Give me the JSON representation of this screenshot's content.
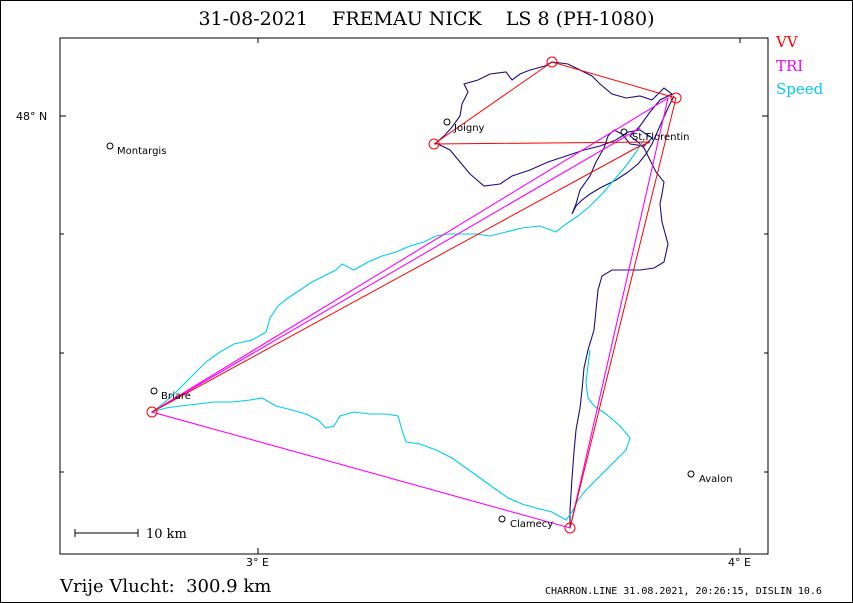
{
  "title": "31-08-2021    FREMAU NICK    LS 8 (PH-1080)",
  "legend": [
    {
      "label": "VV",
      "color": "#ff0000"
    },
    {
      "label": "TRI",
      "color": "#ff00ff"
    },
    {
      "label": "Speed",
      "color": "#00ccee"
    }
  ],
  "axes": {
    "lat_label": "48° N",
    "lon_labels": [
      "3° E",
      "4° E"
    ]
  },
  "scale_bar": "10 km",
  "cities": [
    {
      "name": "Montargis"
    },
    {
      "name": "Joigny"
    },
    {
      "name": "St.Florentin"
    },
    {
      "name": "Briare"
    },
    {
      "name": "Clamecy"
    },
    {
      "name": "Avalon"
    }
  ],
  "colors": {
    "track": "#1a0f80",
    "vv": "#ff0000",
    "tri": "#ff00ff",
    "speed": "#00ccee"
  },
  "footer": {
    "distance": "Vrije Vlucht:  300.9 km",
    "credit": "CHARRON.LINE 31.08.2021, 20:26:15, DISLIN 10.6"
  }
}
